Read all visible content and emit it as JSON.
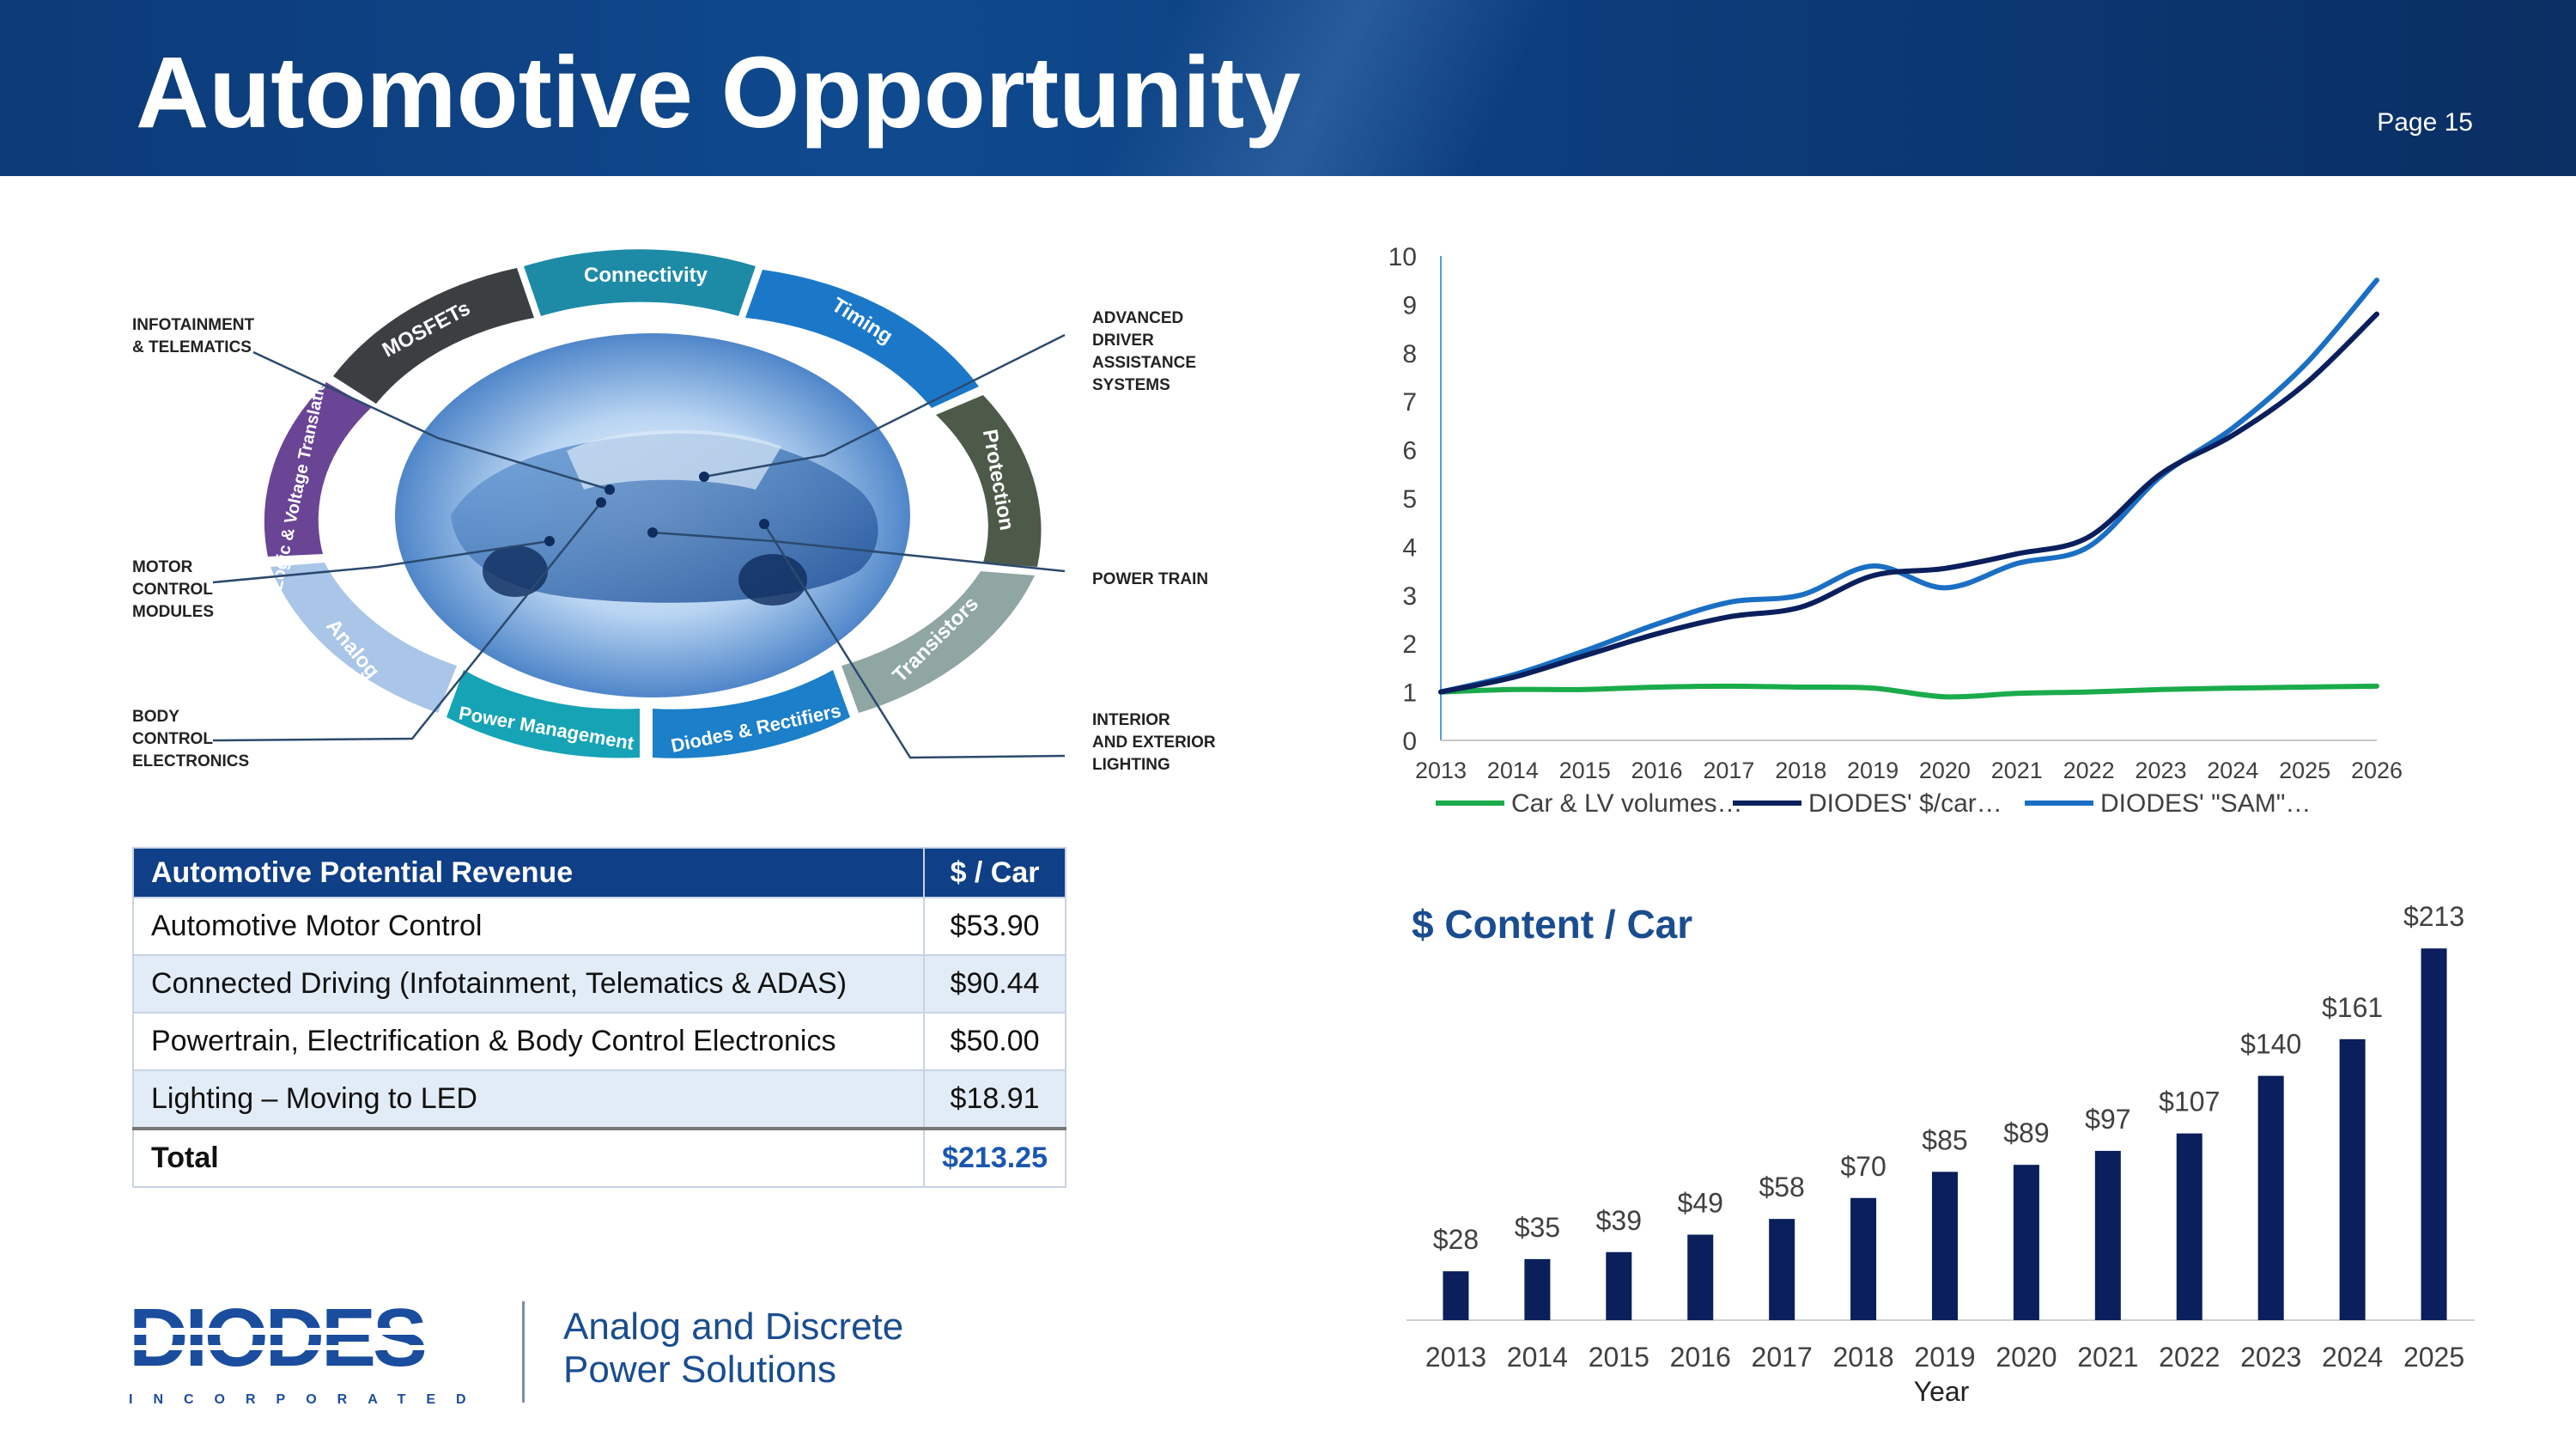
{
  "slide": {
    "title": "Automotive Opportunity",
    "page": "Page 15"
  },
  "diagram": {
    "segments": [
      "Connectivity",
      "Timing",
      "Protection",
      "Transistors",
      "Diodes & Rectifiers",
      "Power Management",
      "Analog",
      "Logic & Voltage Translation",
      "MOSFETs"
    ],
    "callouts_left": [
      [
        "INFOTAINMENT",
        "& TELEMATICS"
      ],
      [
        "MOTOR",
        "CONTROL",
        "MODULES"
      ],
      [
        "BODY",
        "CONTROL",
        "ELECTRONICS"
      ]
    ],
    "callouts_right": [
      [
        "ADVANCED",
        "DRIVER",
        "ASSISTANCE",
        "SYSTEMS"
      ],
      [
        "POWER TRAIN"
      ],
      [
        "INTERIOR",
        "AND EXTERIOR",
        "LIGHTING"
      ]
    ]
  },
  "table": {
    "header": [
      "Automotive Potential Revenue",
      "$ / Car"
    ],
    "rows": [
      [
        "Automotive Motor Control",
        "$53.90"
      ],
      [
        "Connected Driving (Infotainment, Telematics & ADAS)",
        "$90.44"
      ],
      [
        "Powertrain, Electrification & Body Control Electronics",
        "$50.00"
      ],
      [
        "Lighting – Moving to LED",
        "$18.91"
      ]
    ],
    "total": [
      "Total",
      "$213.25"
    ]
  },
  "brand": {
    "logo": "DIODES",
    "logo_sub": "INCORPORATED",
    "tagline_1": "Analog and Discrete",
    "tagline_2": "Power Solutions"
  },
  "colors": {
    "navy": "#0a1f5c",
    "blue": "#1a6fc4",
    "green": "#1aab4b",
    "header": "#0c3a78",
    "bar": "#0a1f5c"
  },
  "chart_data": [
    {
      "type": "line",
      "x": [
        2013,
        2014,
        2015,
        2016,
        2017,
        2018,
        2019,
        2020,
        2021,
        2022,
        2023,
        2024,
        2025,
        2026
      ],
      "ylim": [
        0,
        10
      ],
      "yticks": [
        0,
        1,
        2,
        3,
        4,
        5,
        6,
        7,
        8,
        9,
        10
      ],
      "series": [
        {
          "name": "Car & LV volumes…",
          "color": "#1aab4b",
          "values": [
            1.0,
            1.05,
            1.05,
            1.1,
            1.12,
            1.1,
            1.08,
            0.9,
            0.97,
            1.0,
            1.05,
            1.08,
            1.1,
            1.12
          ]
        },
        {
          "name": "DIODES' $/car…",
          "color": "#0a1f5c",
          "values": [
            1.0,
            1.3,
            1.75,
            2.2,
            2.55,
            2.75,
            3.4,
            3.55,
            3.85,
            4.2,
            5.5,
            6.3,
            7.35,
            8.8
          ]
        },
        {
          "name": "DIODES' \"SAM\"…",
          "color": "#1a6fc4",
          "values": [
            1.0,
            1.35,
            1.85,
            2.4,
            2.85,
            3.0,
            3.6,
            3.15,
            3.65,
            4.0,
            5.45,
            6.45,
            7.75,
            9.5
          ]
        }
      ],
      "legend": "bottom"
    },
    {
      "type": "bar",
      "title": "$ Content / Car",
      "xlabel": "Year",
      "categories": [
        "2013",
        "2014",
        "2015",
        "2016",
        "2017",
        "2018",
        "2019",
        "2020",
        "2021",
        "2022",
        "2023",
        "2024",
        "2025"
      ],
      "values": [
        28,
        35,
        39,
        49,
        58,
        70,
        85,
        89,
        97,
        107,
        140,
        161,
        213
      ],
      "labels": [
        "$28",
        "$35",
        "$39",
        "$49",
        "$58",
        "$70",
        "$85",
        "$89",
        "$97",
        "$107",
        "$140",
        "$161",
        "$213"
      ],
      "ylim": [
        0,
        220
      ]
    }
  ]
}
